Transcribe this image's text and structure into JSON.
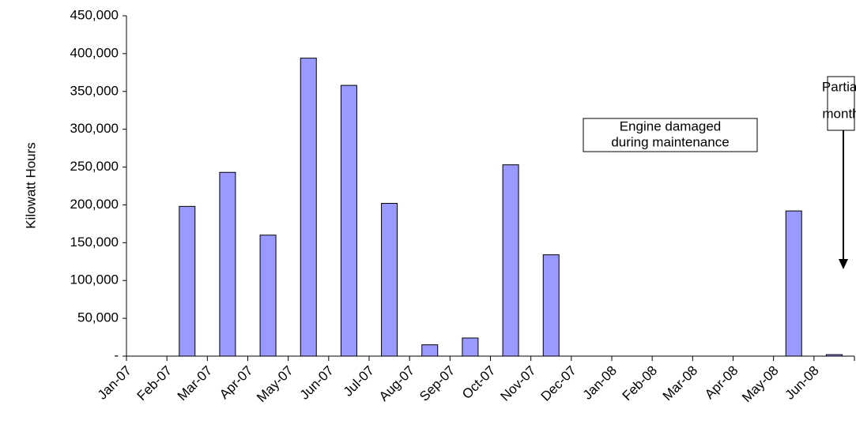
{
  "chart_data": {
    "type": "bar",
    "y_label": "Kilowatt Hours",
    "categories": [
      "Jan-07",
      "Feb-07",
      "Mar-07",
      "Apr-07",
      "May-07",
      "Jun-07",
      "Jul-07",
      "Aug-07",
      "Sep-07",
      "Oct-07",
      "Nov-07",
      "Dec-07",
      "Jan-08",
      "Feb-08",
      "Mar-08",
      "Apr-08",
      "May-08",
      "Jun-08"
    ],
    "values": [
      0,
      198000,
      243000,
      160000,
      394000,
      358000,
      202000,
      15000,
      24000,
      253000,
      134000,
      0,
      0,
      0,
      0,
      0,
      192000,
      2000
    ],
    "color": "#9999ff",
    "ylim": [
      0,
      450000
    ],
    "yticks": [
      {
        "value": 0,
        "label": "-"
      },
      {
        "value": 50000,
        "label": "50,000"
      },
      {
        "value": 100000,
        "label": "100,000"
      },
      {
        "value": 150000,
        "label": "150,000"
      },
      {
        "value": 200000,
        "label": "200,000"
      },
      {
        "value": 250000,
        "label": "250,000"
      },
      {
        "value": 300000,
        "label": "300,000"
      },
      {
        "value": 350000,
        "label": "350,000"
      },
      {
        "value": 400000,
        "label": "400,000"
      },
      {
        "value": 450000,
        "label": "450,000"
      }
    ],
    "grid": false,
    "annotations": [
      {
        "lines": [
          "Engine damaged",
          "during maintenance"
        ]
      },
      {
        "lines": [
          "Partial",
          "month"
        ]
      }
    ]
  }
}
